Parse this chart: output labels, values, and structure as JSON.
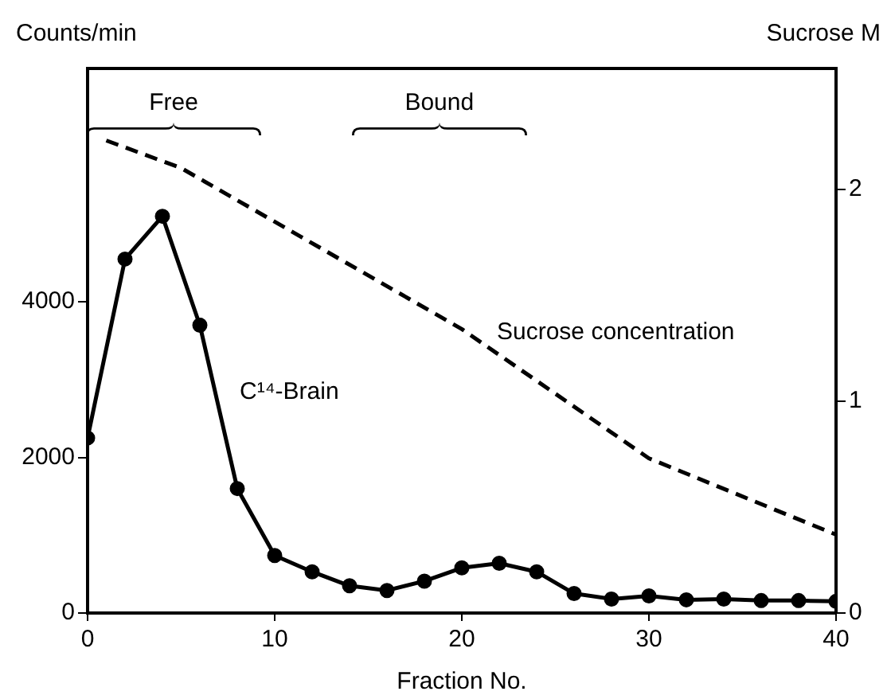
{
  "chart_data": {
    "type": "line",
    "xlabel": "Fraction No.",
    "ylabel": "Counts/min",
    "y2label": "Sucrose M",
    "xlim": [
      0,
      40
    ],
    "xticks": [
      0,
      10,
      20,
      30,
      40
    ],
    "ylim": [
      0,
      7000
    ],
    "yticks": [
      0,
      2000,
      4000
    ],
    "y2lim": [
      0,
      2.57
    ],
    "y2ticks": [
      0,
      1,
      2
    ],
    "grid": false,
    "legend": false,
    "marker": "circle",
    "series": [
      {
        "name": "C¹⁴-Brain",
        "color": "#000000",
        "x": [
          0,
          2,
          4,
          6,
          8,
          10,
          12,
          14,
          16,
          18,
          20,
          22,
          24,
          26,
          28,
          30,
          32,
          34,
          36,
          38,
          40
        ],
        "values": [
          2250,
          4550,
          5100,
          3700,
          1600,
          740,
          530,
          350,
          290,
          410,
          580,
          640,
          530,
          250,
          180,
          220,
          170,
          180,
          160,
          160,
          150
        ]
      },
      {
        "name": "Sucrose concentration",
        "color": "#000000",
        "axis": "y2",
        "marker": "none",
        "line_style": "dashed",
        "x": [
          1,
          5,
          20,
          30,
          40
        ],
        "values": [
          2.23,
          2.1,
          1.34,
          0.73,
          0.37
        ]
      }
    ],
    "annotations": [
      "Free",
      "Bound"
    ]
  }
}
